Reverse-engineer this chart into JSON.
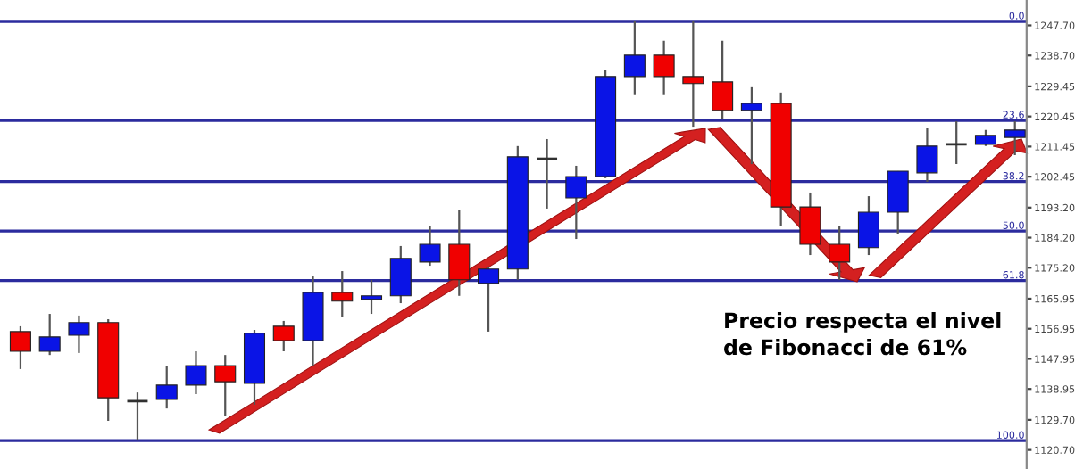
{
  "chart_data": {
    "type": "candlestick",
    "categories": [
      null,
      null,
      null,
      null,
      null,
      null,
      null,
      null,
      null,
      null,
      null,
      null,
      null,
      null,
      null,
      null,
      null,
      null,
      null,
      null,
      null,
      null,
      null,
      null,
      null,
      null,
      null,
      null,
      null,
      null,
      null,
      null,
      null,
      null,
      null
    ],
    "ohlc": [
      [
        1156.1,
        1157.7,
        1144.9,
        1150.2
      ],
      [
        1150.2,
        1161.4,
        1149.1,
        1154.5
      ],
      [
        1155.0,
        1160.9,
        1149.7,
        1158.8
      ],
      [
        1158.8,
        1159.8,
        1129.4,
        1136.3
      ],
      [
        1135.3,
        1137.9,
        1123.5,
        1135.3
      ],
      [
        1135.8,
        1145.9,
        1133.1,
        1140.1
      ],
      [
        1140.1,
        1150.2,
        1137.4,
        1145.9
      ],
      [
        1145.9,
        1149.1,
        1131.0,
        1141.1
      ],
      [
        1140.6,
        1156.6,
        1134.2,
        1155.6
      ],
      [
        1157.7,
        1159.3,
        1150.2,
        1153.4
      ],
      [
        1153.4,
        1172.6,
        1145.9,
        1167.8
      ],
      [
        1167.8,
        1174.2,
        1160.4,
        1165.2
      ],
      [
        1165.7,
        1171.6,
        1161.4,
        1166.8
      ],
      [
        1166.8,
        1181.7,
        1164.6,
        1178.0
      ],
      [
        1176.9,
        1187.6,
        1175.8,
        1182.2
      ],
      [
        1182.2,
        1192.4,
        1166.8,
        1171.6
      ],
      [
        1170.5,
        1175.3,
        1156.1,
        1174.8
      ],
      [
        1174.8,
        1211.6,
        1171.6,
        1208.4
      ],
      [
        1207.8,
        1213.7,
        1192.9,
        1207.8
      ],
      [
        1196.1,
        1205.7,
        1183.8,
        1202.5
      ],
      [
        1202.5,
        1234.5,
        1202.0,
        1232.4
      ],
      [
        1232.4,
        1248.9,
        1227.1,
        1238.8
      ],
      [
        1238.8,
        1243.1,
        1227.1,
        1232.4
      ],
      [
        1232.4,
        1248.9,
        1217.4,
        1230.3
      ],
      [
        1230.8,
        1243.1,
        1219.6,
        1222.3
      ],
      [
        1222.3,
        1229.2,
        1206.2,
        1224.4
      ],
      [
        1224.4,
        1227.6,
        1187.6,
        1193.4
      ],
      [
        1193.4,
        1197.7,
        1179.0,
        1182.2
      ],
      [
        1182.2,
        1187.6,
        1171.6,
        1176.9
      ],
      [
        1181.2,
        1196.6,
        1179.0,
        1191.8
      ],
      [
        1191.8,
        1204.1,
        1185.4,
        1204.1
      ],
      [
        1203.6,
        1216.9,
        1200.9,
        1211.6
      ],
      [
        1212.1,
        1219.0,
        1206.2,
        1212.1
      ],
      [
        1212.1,
        1216.4,
        1211.6,
        1214.8
      ],
      [
        1214.2,
        1219.0,
        1208.9,
        1216.4
      ]
    ],
    "colors": [
      "#f00000",
      "#0a14e6",
      "#0a14e6",
      "#f00000",
      "#303030",
      "#0a14e6",
      "#0a14e6",
      "#f00000",
      "#0a14e6",
      "#f00000",
      "#0a14e6",
      "#f00000",
      "#0a14e6",
      "#0a14e6",
      "#0a14e6",
      "#f00000",
      "#0a14e6",
      "#0a14e6",
      "#303030",
      "#0a14e6",
      "#0a14e6",
      "#0a14e6",
      "#f00000",
      "#f00000",
      "#f00000",
      "#0a14e6",
      "#f00000",
      "#f00000",
      "#f00000",
      "#0a14e6",
      "#0a14e6",
      "#0a14e6",
      "#303030",
      "#0a14e6",
      "#0a14e6"
    ],
    "ylim": [
      1115.0,
      1255.3
    ],
    "yticks": [
      {
        "value": 1247.7,
        "label": "1247.70"
      },
      {
        "value": 1238.7,
        "label": "1238.70"
      },
      {
        "value": 1229.45,
        "label": "1229.45"
      },
      {
        "value": 1220.45,
        "label": "1220.45"
      },
      {
        "value": 1211.45,
        "label": "1211.45"
      },
      {
        "value": 1202.45,
        "label": "1202.45"
      },
      {
        "value": 1193.2,
        "label": "1193.20"
      },
      {
        "value": 1184.2,
        "label": "1184.20"
      },
      {
        "value": 1175.2,
        "label": "1175.20"
      },
      {
        "value": 1165.95,
        "label": "1165.95"
      },
      {
        "value": 1156.95,
        "label": "1156.95"
      },
      {
        "value": 1147.95,
        "label": "1147.95"
      },
      {
        "value": 1138.95,
        "label": "1138.95"
      },
      {
        "value": 1129.7,
        "label": "1129.70"
      },
      {
        "value": 1120.7,
        "label": "1120.70"
      }
    ],
    "ref_lines": [
      {
        "axis": "y",
        "value": 1248.9,
        "color": "#2b2b9e"
      },
      {
        "axis": "y",
        "value": 1219.3,
        "color": "#2b2b9e"
      },
      {
        "axis": "y",
        "value": 1201.0,
        "color": "#2b2b9e"
      },
      {
        "axis": "y",
        "value": 1186.2,
        "color": "#2b2b9e"
      },
      {
        "axis": "y",
        "value": 1171.4,
        "color": "#2b2b9e"
      },
      {
        "axis": "y",
        "value": 1123.5,
        "color": "#2b2b9e"
      }
    ],
    "annotations": [
      "Precio respecta el nivel\nde Fibonacci de 61%",
      {
        "text": "0.0",
        "y": 1248.9
      },
      {
        "text": "23.6",
        "y": 1219.3
      },
      {
        "text": "38.2",
        "y": 1201.0
      },
      {
        "text": "50.0",
        "y": 1186.2
      },
      {
        "text": "61.8",
        "y": 1171.4
      },
      {
        "text": "100.0",
        "y": 1123.5
      }
    ],
    "tick_labels": "y",
    "grid": false
  }
}
